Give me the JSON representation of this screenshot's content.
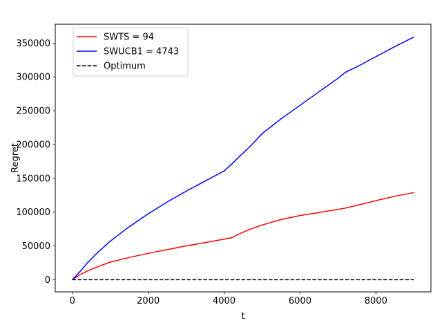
{
  "chart_data": {
    "type": "line",
    "title": "",
    "xlabel": "t",
    "ylabel": "Regret",
    "xlim": [
      -450,
      9450
    ],
    "ylim": [
      -18000,
      378000
    ],
    "xticks": [
      0,
      2000,
      4000,
      6000,
      8000
    ],
    "yticks": [
      0,
      50000,
      100000,
      150000,
      200000,
      250000,
      300000,
      350000
    ],
    "grid": false,
    "legend": "top-left",
    "series": [
      {
        "name": "SWTS = 94",
        "color": "#ff0000",
        "linestyle": "solid",
        "x": [
          0,
          200,
          400,
          700,
          1000,
          1500,
          2000,
          2500,
          3000,
          3500,
          4000,
          4200,
          4400,
          4700,
          5000,
          5500,
          6000,
          6500,
          7000,
          7200,
          7500,
          8000,
          8500,
          9000
        ],
        "y": [
          0,
          7500,
          13000,
          20000,
          26000,
          33000,
          39000,
          44500,
          50000,
          55000,
          60000,
          62000,
          68000,
          75000,
          81000,
          89000,
          95000,
          99500,
          104000,
          106000,
          110000,
          117000,
          123500,
          129000
        ]
      },
      {
        "name": "SWUCB1 = 4743",
        "color": "#0000ff",
        "linestyle": "solid",
        "x": [
          0,
          200,
          400,
          700,
          1000,
          1500,
          2000,
          2500,
          3000,
          3500,
          4000,
          4200,
          4400,
          4700,
          5000,
          5500,
          6000,
          6500,
          7000,
          7200,
          7500,
          8000,
          8500,
          9000
        ],
        "y": [
          0,
          12000,
          25000,
          42000,
          57000,
          78500,
          97500,
          115000,
          131000,
          146000,
          161000,
          171000,
          182000,
          198000,
          216000,
          238000,
          258000,
          278000,
          298000,
          307000,
          315000,
          330000,
          345000,
          359000
        ]
      },
      {
        "name": "Optimum",
        "color": "#000000",
        "linestyle": "dashed",
        "x": [
          0,
          9000
        ],
        "y": [
          0,
          0
        ]
      }
    ]
  }
}
